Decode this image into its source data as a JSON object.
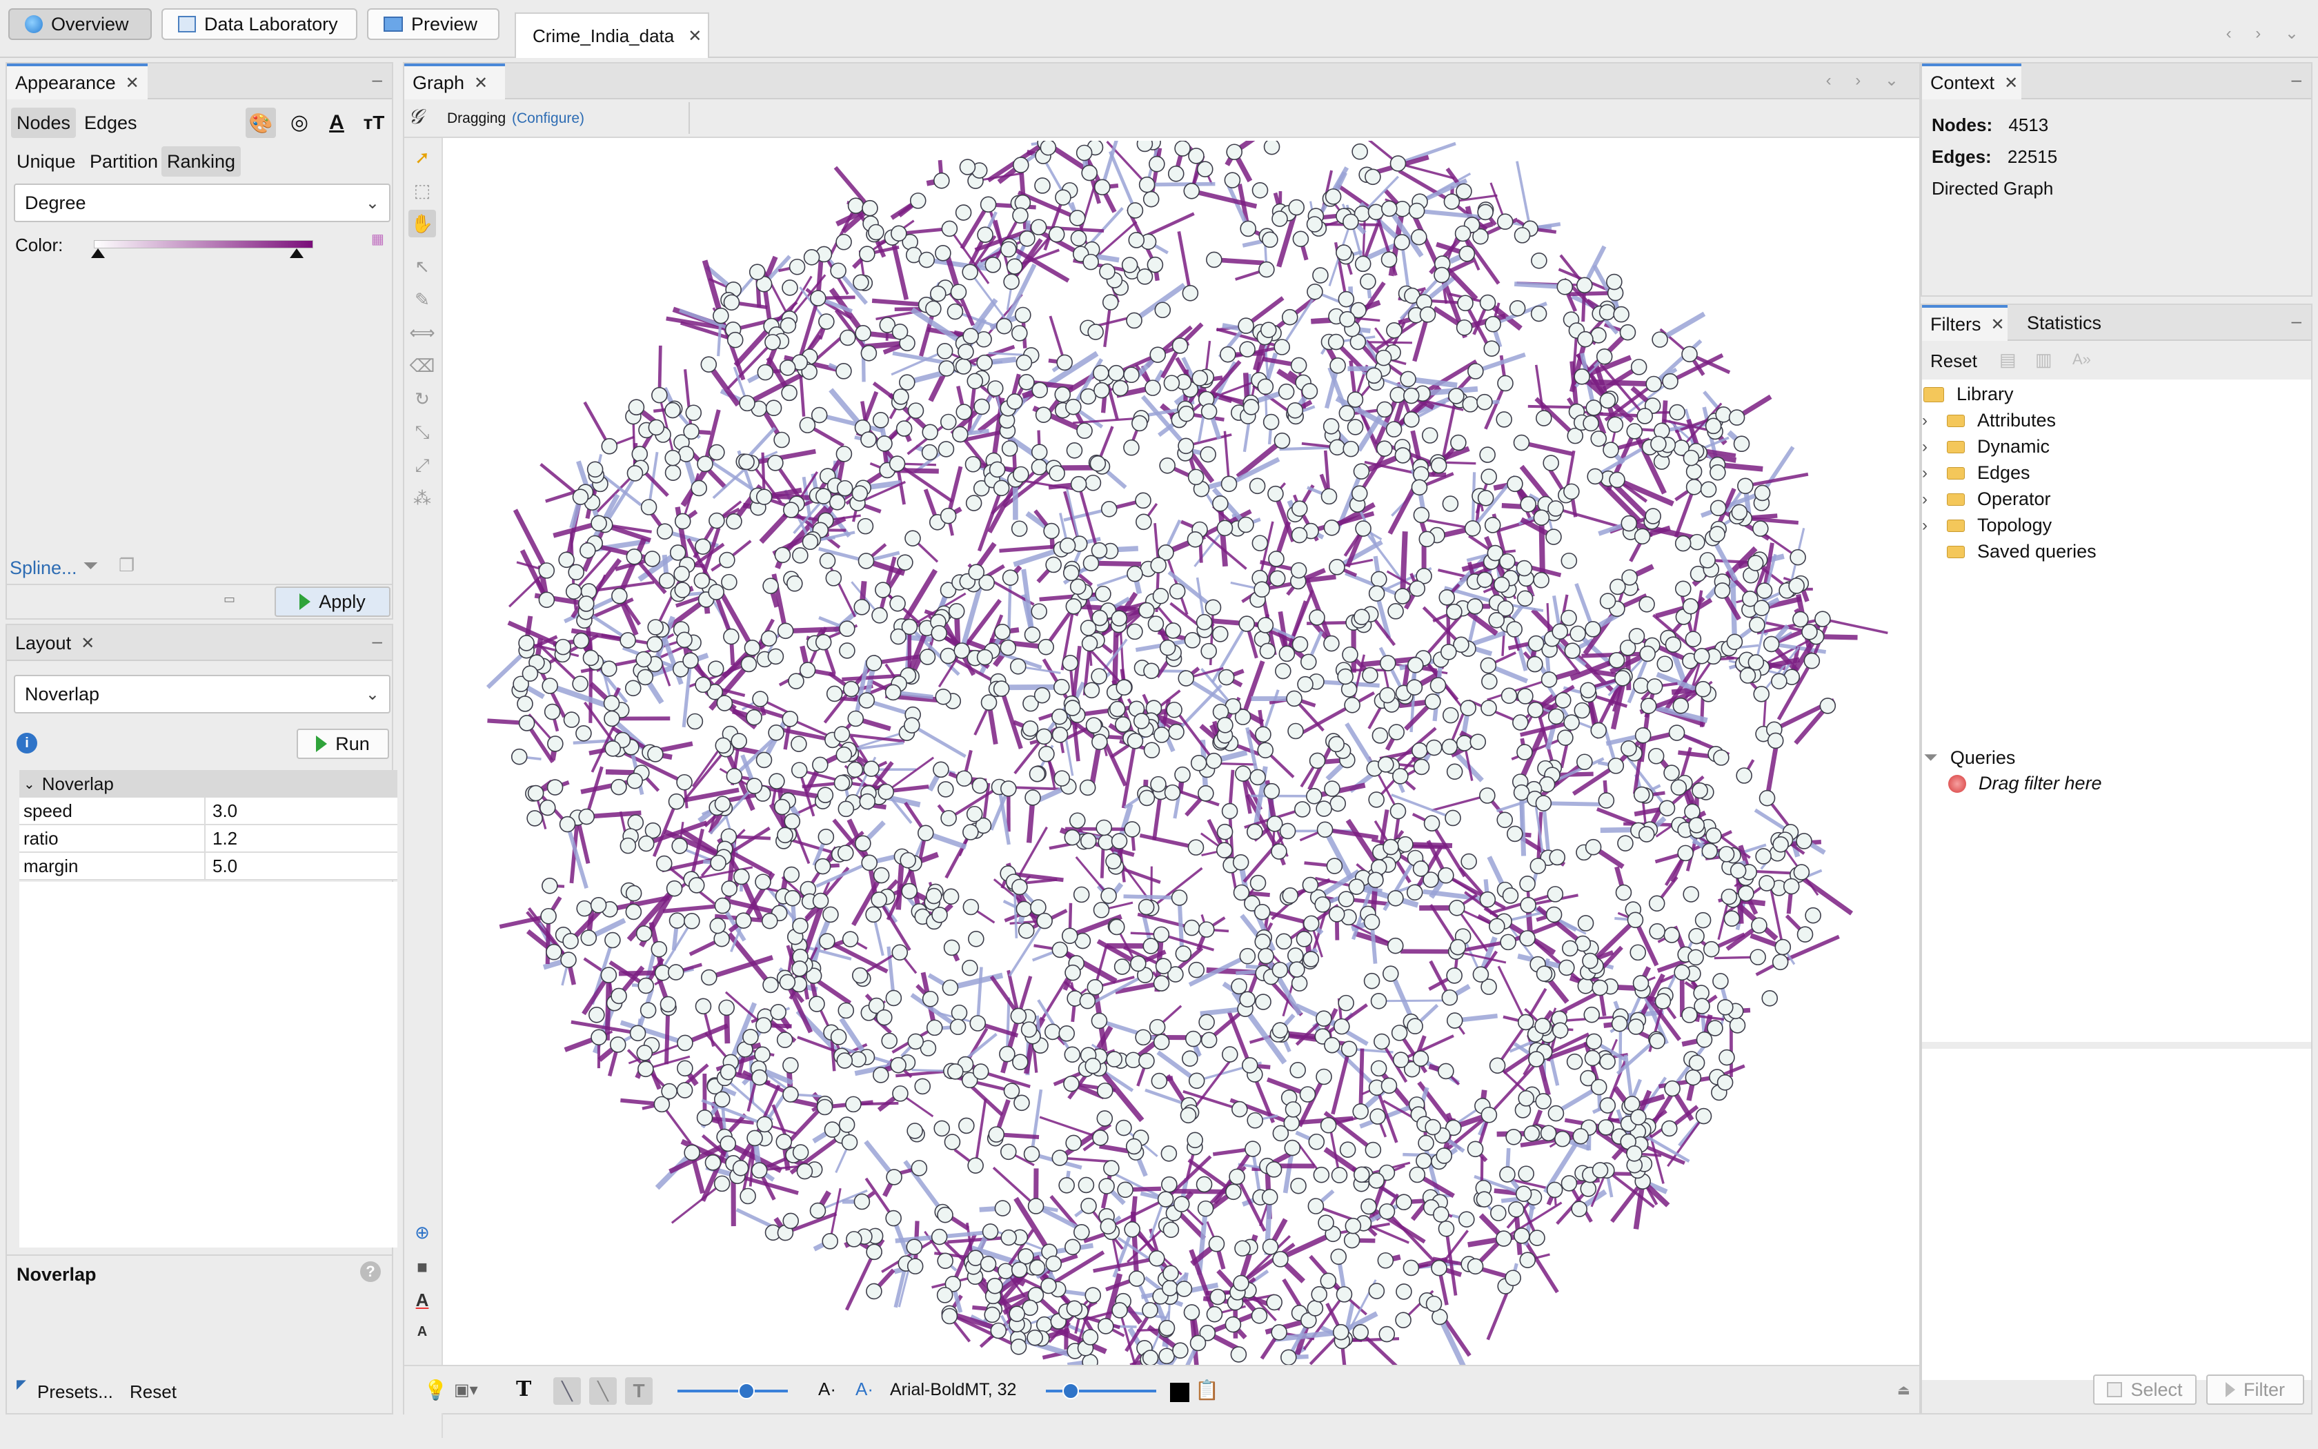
{
  "topbar": {
    "overview": "Overview",
    "data_laboratory": "Data Laboratory",
    "preview": "Preview",
    "document_tab": "Crime_India_data"
  },
  "appearance": {
    "tab": "Appearance",
    "modes": [
      "Nodes",
      "Edges"
    ],
    "subtabs": [
      "Unique",
      "Partition",
      "Ranking"
    ],
    "attribute": "Degree",
    "color_label": "Color:",
    "spline": "Spline...",
    "apply": "Apply",
    "gradient_start": "#ffffff",
    "gradient_end": "#7a0e7a"
  },
  "layout": {
    "tab": "Layout",
    "algorithm": "Noverlap",
    "run": "Run",
    "section": "Noverlap",
    "properties": [
      {
        "key": "speed",
        "value": "3.0"
      },
      {
        "key": "ratio",
        "value": "1.2"
      },
      {
        "key": "margin",
        "value": "5.0"
      }
    ],
    "description_title": "Noverlap",
    "presets": "Presets...",
    "reset": "Reset"
  },
  "graph": {
    "tab": "Graph",
    "mode": "Dragging",
    "configure": "(Configure)",
    "font_label": "Arial-BoldMT, 32",
    "node_fill": "#eef5f3",
    "edge_color": "#7b1f82",
    "edge_light": "#9aa3d6"
  },
  "context": {
    "tab": "Context",
    "nodes_label": "Nodes:",
    "nodes_value": "4513",
    "edges_label": "Edges:",
    "edges_value": "22515",
    "graph_type": "Directed Graph"
  },
  "filters": {
    "tab": "Filters",
    "stats_tab": "Statistics",
    "reset": "Reset",
    "library": "Library",
    "items": [
      "Attributes",
      "Dynamic",
      "Edges",
      "Operator",
      "Topology"
    ],
    "saved": "Saved queries",
    "queries": "Queries",
    "drag_hint": "Drag filter here",
    "select": "Select",
    "filter": "Filter"
  }
}
